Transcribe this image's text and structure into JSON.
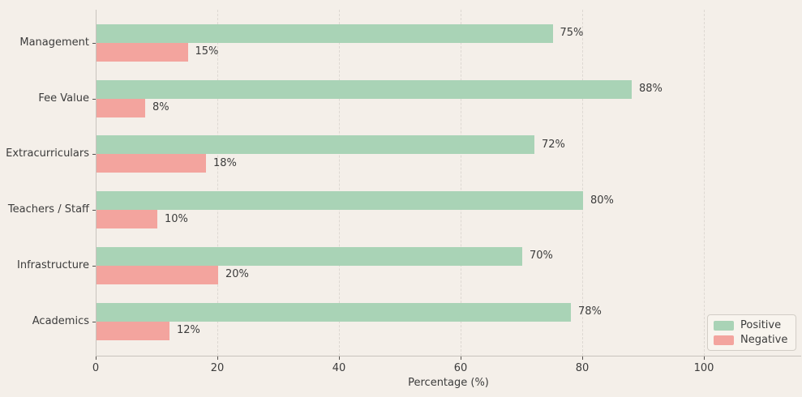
{
  "figure": {
    "background": "#f4efe9",
    "text_color": "#3c3c3c",
    "grid_color": "#ddd8d2",
    "axis_color": "#c8c3bd"
  },
  "chart_data": {
    "type": "bar",
    "orientation": "horizontal",
    "title": "",
    "xlabel": "Percentage (%)",
    "ylabel": "",
    "categories": [
      "Management",
      "Fee Value",
      "Extracurriculars",
      "Teachers / Staff",
      "Infrastructure",
      "Academics"
    ],
    "series": [
      {
        "name": "Positive",
        "color": "#a9d3b6",
        "values": [
          75,
          88,
          72,
          80,
          70,
          78
        ],
        "labels": [
          "75%",
          "88%",
          "72%",
          "80%",
          "70%",
          "78%"
        ]
      },
      {
        "name": "Negative",
        "color": "#f3a49e",
        "values": [
          15,
          8,
          18,
          10,
          20,
          12
        ],
        "labels": [
          "15%",
          "8%",
          "18%",
          "10%",
          "20%",
          "12%"
        ]
      }
    ],
    "x_ticks": [
      0,
      20,
      40,
      60,
      80,
      100
    ],
    "x_tick_labels": [
      "0",
      "20",
      "40",
      "60",
      "80",
      "100"
    ],
    "xlim": [
      0,
      116
    ],
    "grid": "vertical-dashed",
    "legend": {
      "position": "lower-right",
      "entries": [
        "Positive",
        "Negative"
      ]
    }
  }
}
